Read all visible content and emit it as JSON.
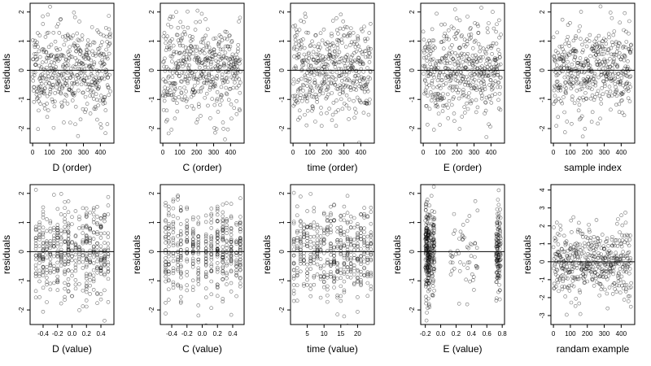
{
  "chart_data": [
    {
      "type": "scatter",
      "xlabel": "D (order)",
      "ylabel": "residuals",
      "xlim": [
        -15,
        480
      ],
      "ylim": [
        -2.5,
        2.3
      ],
      "xticks": [
        0,
        100,
        200,
        300,
        400
      ],
      "xticklabels": [
        "0",
        "100",
        "200",
        "300",
        "400"
      ],
      "yticks": [
        -2,
        -1,
        0,
        1,
        2
      ],
      "yticklabels": [
        "-2",
        "-1",
        "0",
        "1",
        "2"
      ],
      "hline": 0,
      "points": {
        "mode": "order",
        "n": 460,
        "seed": 11,
        "sd": 0.8
      }
    },
    {
      "type": "scatter",
      "xlabel": "C (order)",
      "ylabel": "residuals",
      "xlim": [
        -15,
        480
      ],
      "ylim": [
        -2.5,
        2.3
      ],
      "xticks": [
        0,
        100,
        200,
        300,
        400
      ],
      "xticklabels": [
        "0",
        "100",
        "200",
        "300",
        "400"
      ],
      "yticks": [
        -2,
        -1,
        0,
        1,
        2
      ],
      "yticklabels": [
        "-2",
        "-1",
        "0",
        "1",
        "2"
      ],
      "hline": 0,
      "points": {
        "mode": "order",
        "n": 460,
        "seed": 23,
        "sd": 0.8
      }
    },
    {
      "type": "scatter",
      "xlabel": "time (order)",
      "ylabel": "residuals",
      "xlim": [
        -15,
        480
      ],
      "ylim": [
        -2.5,
        2.3
      ],
      "xticks": [
        0,
        100,
        200,
        300,
        400
      ],
      "xticklabels": [
        "0",
        "100",
        "200",
        "300",
        "400"
      ],
      "yticks": [
        -2,
        -1,
        0,
        1,
        2
      ],
      "yticklabels": [
        "-2",
        "-1",
        "0",
        "1",
        "2"
      ],
      "hline": 0,
      "points": {
        "mode": "order",
        "n": 460,
        "seed": 37,
        "sd": 0.8
      }
    },
    {
      "type": "scatter",
      "xlabel": "E (order)",
      "ylabel": "residuals",
      "xlim": [
        -15,
        480
      ],
      "ylim": [
        -2.5,
        2.3
      ],
      "xticks": [
        0,
        100,
        200,
        300,
        400
      ],
      "xticklabels": [
        "0",
        "100",
        "200",
        "300",
        "400"
      ],
      "yticks": [
        -2,
        -1,
        0,
        1,
        2
      ],
      "yticklabels": [
        "-2",
        "-1",
        "0",
        "1",
        "2"
      ],
      "hline": 0,
      "points": {
        "mode": "order",
        "n": 460,
        "seed": 41,
        "sd": 0.8
      }
    },
    {
      "type": "scatter",
      "xlabel": "sample index",
      "ylabel": "residuals",
      "xlim": [
        -15,
        480
      ],
      "ylim": [
        -2.5,
        2.3
      ],
      "xticks": [
        0,
        100,
        200,
        300,
        400
      ],
      "xticklabels": [
        "0",
        "100",
        "200",
        "300",
        "400"
      ],
      "yticks": [
        -2,
        -1,
        0,
        1,
        2
      ],
      "yticklabels": [
        "-2",
        "-1",
        "0",
        "1",
        "2"
      ],
      "hline": 0,
      "points": {
        "mode": "order",
        "n": 460,
        "seed": 53,
        "sd": 0.8
      }
    },
    {
      "type": "scatter",
      "xlabel": "D (value)",
      "ylabel": "residuals",
      "xlim": [
        -0.58,
        0.58
      ],
      "ylim": [
        -2.5,
        2.3
      ],
      "xticks": [
        -0.4,
        -0.2,
        0,
        0.2,
        0.4
      ],
      "xticklabels": [
        "-0.4",
        "-0.2",
        "0.0",
        "0.2",
        "0.4"
      ],
      "yticks": [
        -2,
        -1,
        0,
        1,
        2
      ],
      "yticklabels": [
        "-2",
        "-1",
        "0",
        "1",
        "2"
      ],
      "hline": 0,
      "points": {
        "mode": "columns",
        "n": 460,
        "seed": 61,
        "sd": 0.8,
        "columns": [
          -0.5,
          -0.45,
          -0.4,
          -0.35,
          -0.3,
          -0.25,
          -0.2,
          -0.15,
          -0.1,
          -0.05,
          0.0,
          0.05,
          0.1,
          0.15,
          0.2,
          0.25,
          0.3,
          0.35,
          0.4,
          0.45,
          0.5
        ]
      }
    },
    {
      "type": "scatter",
      "xlabel": "C (value)",
      "ylabel": "residuals",
      "xlim": [
        -0.55,
        0.55
      ],
      "ylim": [
        -2.5,
        2.3
      ],
      "xticks": [
        -0.4,
        -0.2,
        0,
        0.2,
        0.4
      ],
      "xticklabels": [
        "-0.4",
        "-0.2",
        "0.0",
        "0.2",
        "0.4"
      ],
      "yticks": [
        -2,
        -1,
        0,
        1,
        2
      ],
      "yticklabels": [
        "-2",
        "-1",
        "0",
        "1",
        "2"
      ],
      "hline": 0,
      "points": {
        "mode": "columns",
        "n": 460,
        "seed": 71,
        "sd": 0.8,
        "columns": [
          -0.48,
          -0.44,
          -0.38,
          -0.32,
          -0.28,
          -0.2,
          -0.12,
          -0.05,
          0.05,
          0.12,
          0.2,
          0.27,
          0.32,
          0.38,
          0.45,
          0.5
        ]
      }
    },
    {
      "type": "scatter",
      "xlabel": "time (value)",
      "ylabel": "residuals",
      "xlim": [
        0,
        25
      ],
      "ylim": [
        -2.5,
        2.3
      ],
      "xticks": [
        5,
        10,
        15,
        20
      ],
      "xticklabels": [
        "5",
        "10",
        "15",
        "20"
      ],
      "yticks": [
        -2,
        -1,
        0,
        1,
        2
      ],
      "yticklabels": [
        "-2",
        "-1",
        "0",
        "1",
        "2"
      ],
      "hline": 0,
      "points": {
        "mode": "columns",
        "n": 460,
        "seed": 83,
        "sd": 0.8,
        "columns": [
          1,
          2,
          3,
          4,
          5,
          6,
          7,
          8,
          9,
          10,
          11,
          12,
          13,
          14,
          15,
          16,
          17,
          18,
          19,
          20,
          21,
          22,
          23,
          24
        ]
      }
    },
    {
      "type": "scatter",
      "xlabel": "E (value)",
      "ylabel": "residuals",
      "xlim": [
        -0.26,
        0.83
      ],
      "ylim": [
        -2.5,
        2.3
      ],
      "xticks": [
        -0.2,
        0,
        0.2,
        0.4,
        0.6,
        0.8
      ],
      "xticklabels": [
        "-0.2",
        "0.0",
        "0.2",
        "0.4",
        "0.6",
        "0.8"
      ],
      "yticks": [
        -2,
        -1,
        0,
        1,
        2
      ],
      "yticklabels": [
        "-2",
        "-1",
        "0",
        "1",
        "2"
      ],
      "hline": 0,
      "points": {
        "mode": "clusters",
        "n": 460,
        "seed": 97,
        "sd": 0.8,
        "clusters": [
          {
            "center": -0.17,
            "spread": 0.03,
            "weight": 0.45
          },
          {
            "center": -0.1,
            "spread": 0.02,
            "weight": 0.2
          },
          {
            "center": 0.3,
            "spread": 0.18,
            "weight": 0.12
          },
          {
            "center": 0.75,
            "spread": 0.03,
            "weight": 0.23
          }
        ]
      }
    },
    {
      "type": "scatter",
      "xlabel": "randam example",
      "ylabel": "residuals",
      "xlim": [
        -15,
        480
      ],
      "ylim": [
        -3.5,
        4.3
      ],
      "xticks": [
        0,
        100,
        200,
        300,
        400
      ],
      "xticklabels": [
        "0",
        "100",
        "200",
        "300",
        "400"
      ],
      "yticks": [
        -3,
        -2,
        -1,
        0,
        1,
        2,
        3,
        4
      ],
      "yticklabels": [
        "-3",
        "-2",
        "-1",
        "0",
        "1",
        "2",
        "3",
        "4"
      ],
      "hline": 0,
      "points": {
        "mode": "order",
        "n": 460,
        "seed": 109,
        "sd": 1.0
      }
    }
  ]
}
